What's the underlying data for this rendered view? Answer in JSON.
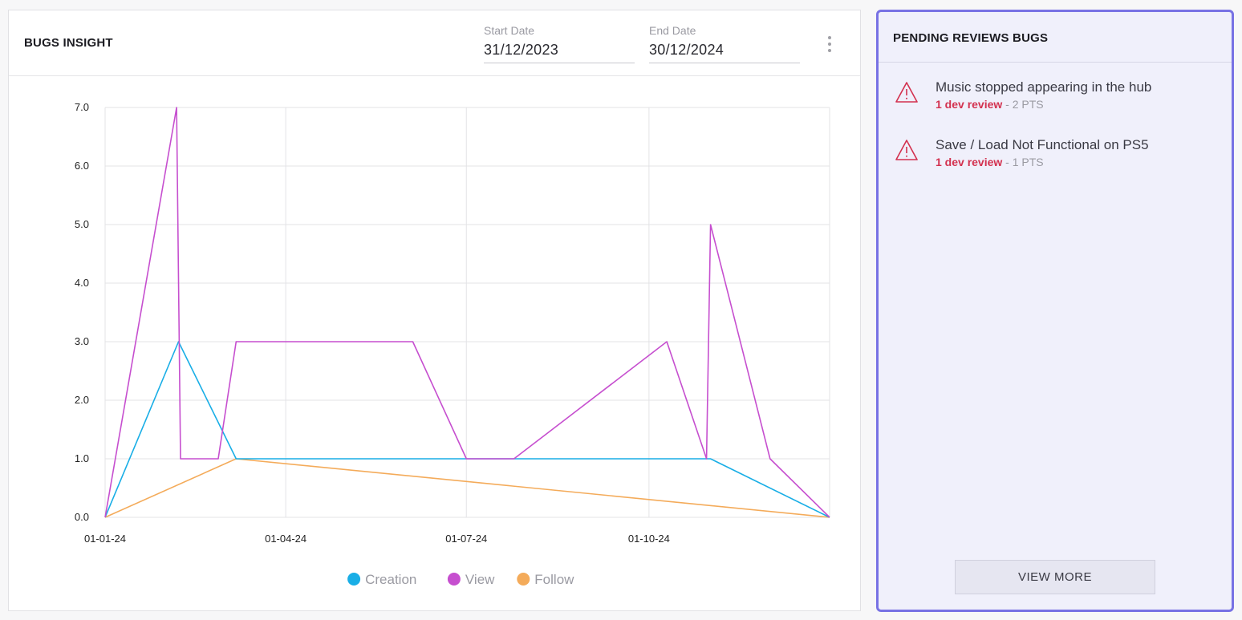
{
  "left_panel": {
    "title": "BUGS INSIGHT",
    "start_date": {
      "label": "Start Date",
      "value": "31/12/2023"
    },
    "end_date": {
      "label": "End Date",
      "value": "30/12/2024"
    },
    "menu_icon": "kebab-menu-icon"
  },
  "chart_data": {
    "type": "line",
    "x_ticks": [
      "01-01-24",
      "01-04-24",
      "01-07-24",
      "01-10-24"
    ],
    "x_range": [
      "2024-01-01",
      "2024-12-31"
    ],
    "ylim": [
      0,
      7
    ],
    "y_ticks": [
      "0.0",
      "1.0",
      "2.0",
      "3.0",
      "4.0",
      "5.0",
      "6.0",
      "7.0"
    ],
    "grid": true,
    "legend_position": "bottom-center",
    "series": [
      {
        "name": "Creation",
        "color": "#19aee6",
        "points": [
          [
            "2024-01-01",
            0
          ],
          [
            "2024-02-07",
            3
          ],
          [
            "2024-03-07",
            1
          ],
          [
            "2024-11-01",
            1
          ],
          [
            "2024-12-31",
            0
          ]
        ]
      },
      {
        "name": "View",
        "color": "#c64fcf",
        "points": [
          [
            "2024-01-01",
            0
          ],
          [
            "2024-02-06",
            7
          ],
          [
            "2024-02-08",
            1
          ],
          [
            "2024-02-27",
            1
          ],
          [
            "2024-03-07",
            3
          ],
          [
            "2024-06-04",
            3
          ],
          [
            "2024-07-01",
            1
          ],
          [
            "2024-07-25",
            1
          ],
          [
            "2024-10-10",
            3
          ],
          [
            "2024-10-30",
            1
          ],
          [
            "2024-11-01",
            5
          ],
          [
            "2024-12-01",
            1
          ],
          [
            "2024-12-31",
            0
          ]
        ]
      },
      {
        "name": "Follow",
        "color": "#f4ab5a",
        "points": [
          [
            "2024-01-01",
            0
          ],
          [
            "2024-03-07",
            1
          ],
          [
            "2024-12-31",
            0
          ]
        ]
      }
    ]
  },
  "right_panel": {
    "title": "PENDING REVIEWS BUGS",
    "icon": "warning-triangle-icon",
    "accent_color": "#7872e4",
    "review_color": "#d3314f",
    "bugs": [
      {
        "title": "Music stopped appearing in the hub",
        "review": "1 dev review",
        "separator": "-",
        "points": "2 PTS"
      },
      {
        "title": "Save / Load Not Functional on PS5",
        "review": "1 dev review",
        "separator": "-",
        "points": "1 PTS"
      }
    ],
    "view_more_label": "VIEW MORE"
  }
}
